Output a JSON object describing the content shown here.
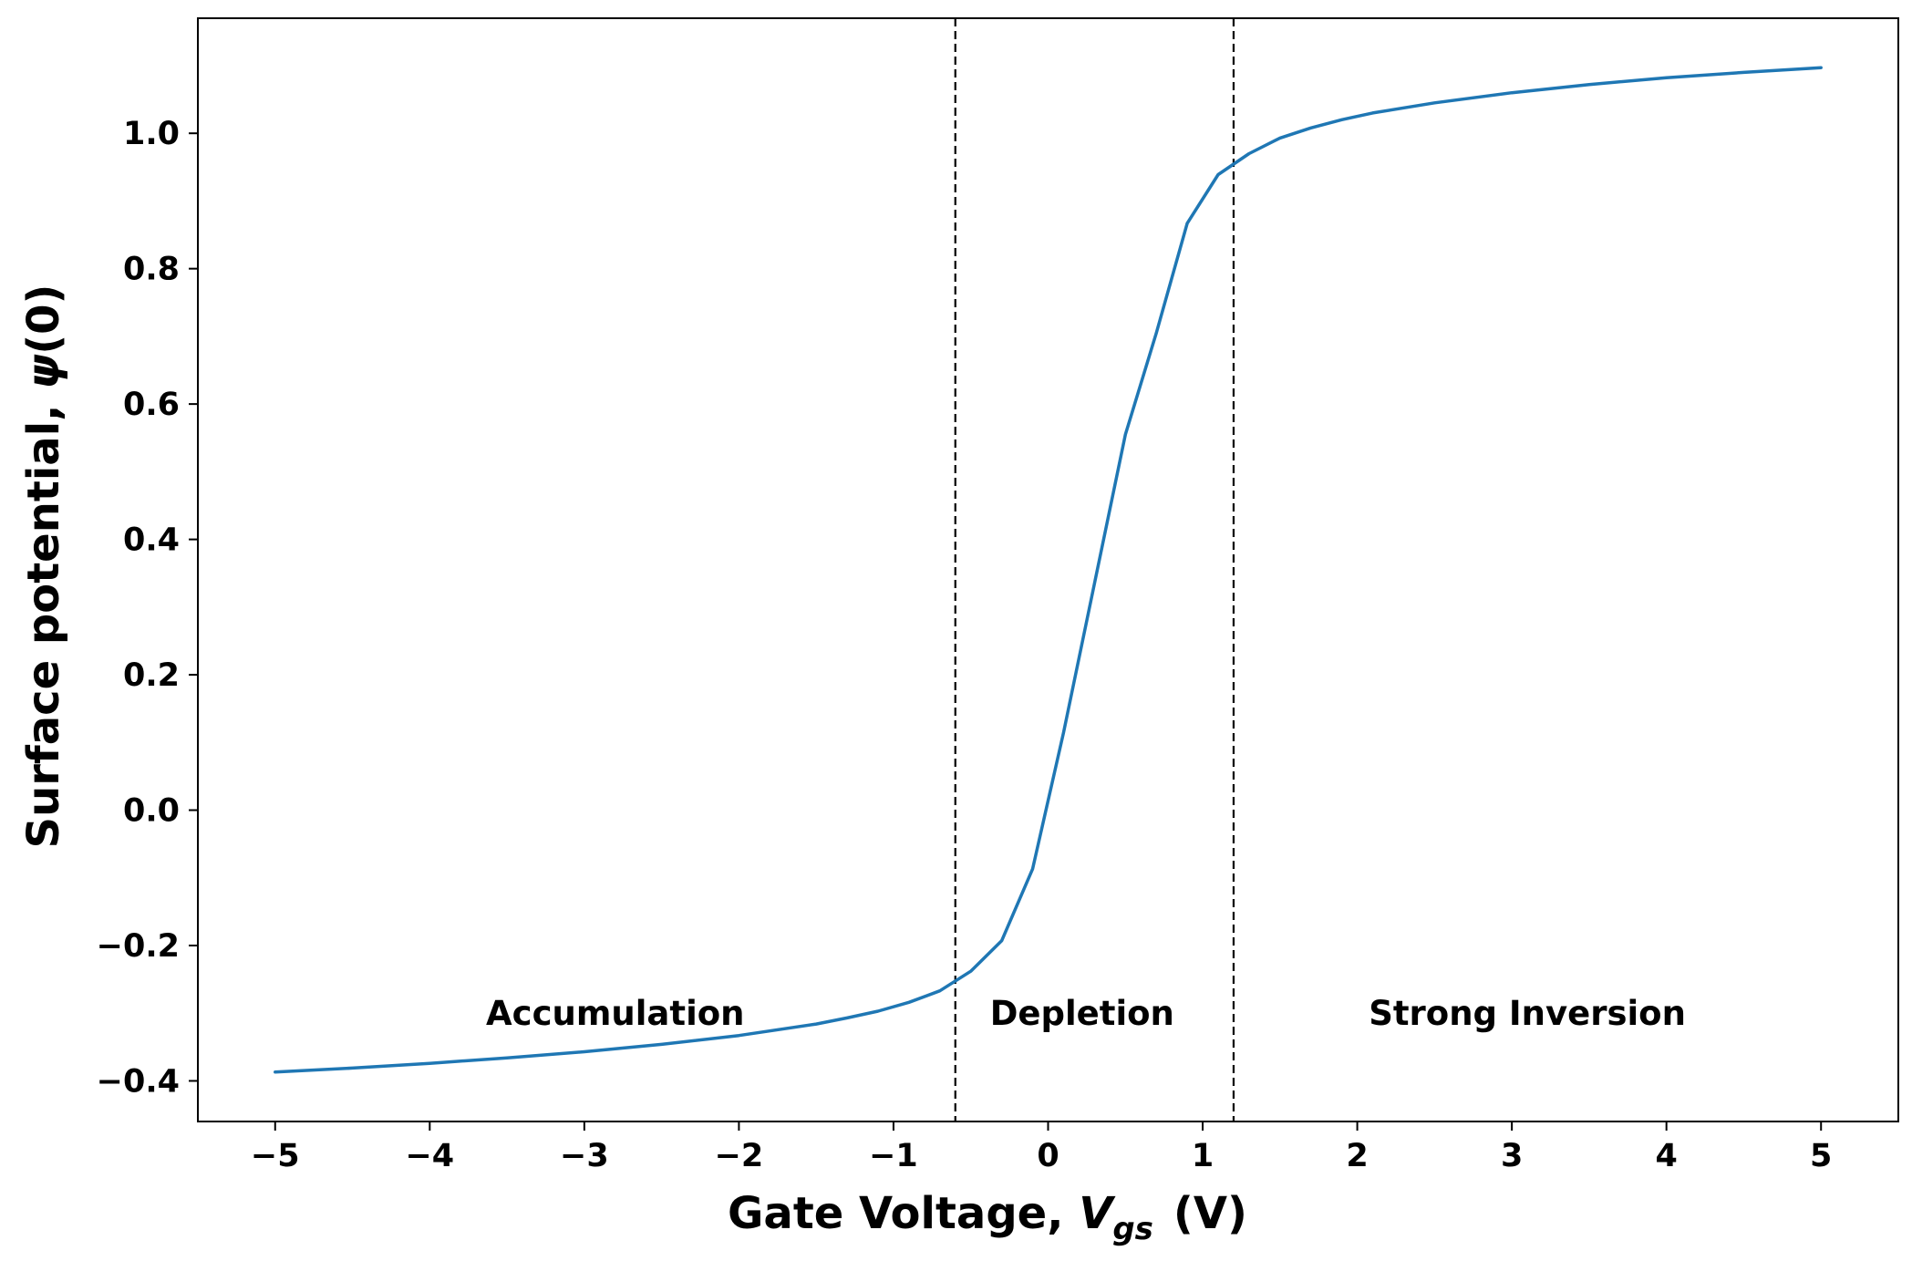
{
  "chart_data": {
    "type": "line",
    "xlabel": {
      "prefix": "Gate Voltage, ",
      "symbol": "V",
      "subscript": "gs",
      "suffix": "(V)"
    },
    "ylabel": {
      "prefix": "Surface potential, ",
      "symbol": "ψ",
      "suffix": "(0)"
    },
    "xlim": [
      -5.5,
      5.5
    ],
    "ylim": [
      -0.46,
      1.17
    ],
    "xticks": [
      -5,
      -4,
      -3,
      -2,
      -1,
      0,
      1,
      2,
      3,
      4,
      5
    ],
    "xtick_labels": [
      "−5",
      "−4",
      "−3",
      "−2",
      "−1",
      "0",
      "1",
      "2",
      "3",
      "4",
      "5"
    ],
    "yticks": [
      -0.4,
      -0.2,
      0.0,
      0.2,
      0.4,
      0.6,
      0.8,
      1.0
    ],
    "ytick_labels": [
      "−0.4",
      "−0.2",
      "0.0",
      "0.2",
      "0.4",
      "0.6",
      "0.8",
      "1.0"
    ],
    "grid": false,
    "series": [
      {
        "color": "#1f77b4",
        "x": [
          -5.0,
          -4.5,
          -4.0,
          -3.5,
          -3.0,
          -2.5,
          -2.0,
          -1.5,
          -1.3,
          -1.1,
          -0.9,
          -0.7,
          -0.5,
          -0.3,
          -0.1,
          0.1,
          0.3,
          0.5,
          0.7,
          0.9,
          1.1,
          1.3,
          1.5,
          1.7,
          1.9,
          2.1,
          2.5,
          3.0,
          3.5,
          4.0,
          4.5,
          5.0
        ],
        "y": [
          -0.387,
          -0.381,
          -0.374,
          -0.366,
          -0.357,
          -0.346,
          -0.333,
          -0.316,
          -0.307,
          -0.297,
          -0.284,
          -0.267,
          -0.238,
          -0.193,
          -0.087,
          0.115,
          0.335,
          0.555,
          0.705,
          0.867,
          0.939,
          0.97,
          0.993,
          1.008,
          1.02,
          1.03,
          1.045,
          1.06,
          1.072,
          1.082,
          1.09,
          1.097
        ]
      }
    ],
    "vlines": [
      {
        "x": -0.6,
        "style": "dashed",
        "color": "#000000"
      },
      {
        "x": 1.2,
        "style": "dashed",
        "color": "#000000"
      }
    ],
    "annotations": [
      {
        "text": "Accumulation",
        "x": -2.8,
        "y": -0.3
      },
      {
        "text": "Depletion",
        "x": 0.22,
        "y": -0.3
      },
      {
        "text": "Strong Inversion",
        "x": 3.1,
        "y": -0.3
      }
    ]
  }
}
